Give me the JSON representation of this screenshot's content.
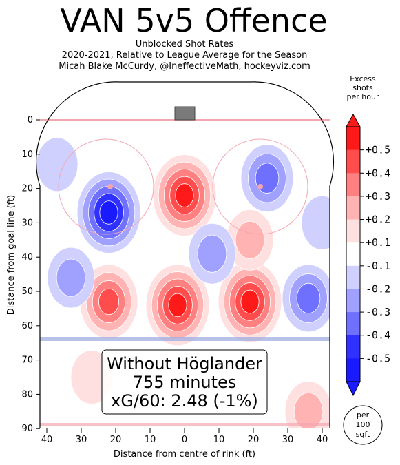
{
  "header": {
    "title": "VAN 5v5 Offence",
    "subtitle_lines": [
      "Unblocked Shot Rates",
      "2020-2021, Relative to League Average for the Season",
      "Micah Blake McCurdy, @IneffectiveMath, hockeyviz.com"
    ]
  },
  "colorbar": {
    "title_lines": [
      "Excess",
      "shots",
      "per hour"
    ],
    "ticks": [
      "+0.5",
      "+0.4",
      "+0.3",
      "+0.2",
      "+0.1",
      "-0.1",
      "-0.2",
      "-0.3",
      "-0.4",
      "-0.5"
    ],
    "colors": [
      "#ff1a1a",
      "#ff4d4d",
      "#ff8080",
      "#ffb3b3",
      "#ffe0e0",
      "#ffffff",
      "#d0d0ff",
      "#a0a0ff",
      "#7070ff",
      "#3030ff",
      "#1a1aff"
    ],
    "unit_lines": [
      "per",
      "100",
      "sqft"
    ]
  },
  "annotation": {
    "lines": [
      "Without Höglander",
      "755 minutes",
      "xG/60: 2.48 (-1%)"
    ]
  },
  "chart_data": {
    "type": "heatmap",
    "xlabel": "Distance from centre of rink (ft)",
    "ylabel": "Distance from goal line (ft)",
    "xlim": [
      -42.5,
      42.5
    ],
    "ylim": [
      90,
      -11
    ],
    "x_ticks": [
      "40",
      "30",
      "20",
      "10",
      "0",
      "10",
      "20",
      "30",
      "40"
    ],
    "y_ticks": [
      "0",
      "10",
      "20",
      "30",
      "40",
      "50",
      "60",
      "70",
      "80",
      "90"
    ],
    "color_scale": [
      -0.5,
      0.5
    ],
    "hotspots": [
      {
        "x": 0,
        "y": 22,
        "value": 0.5
      },
      {
        "x": -2,
        "y": 54,
        "value": 0.5
      },
      {
        "x": 19,
        "y": 53,
        "value": 0.5
      },
      {
        "x": -22,
        "y": 53,
        "value": 0.4
      },
      {
        "x": 19,
        "y": 35,
        "value": 0.2
      },
      {
        "x": 36,
        "y": 85,
        "value": 0.2
      },
      {
        "x": -27,
        "y": 75,
        "value": 0.1
      },
      {
        "x": -22,
        "y": 27,
        "value": -0.5
      },
      {
        "x": 24,
        "y": 17,
        "value": -0.3
      },
      {
        "x": 36,
        "y": 52,
        "value": -0.3
      },
      {
        "x": 8,
        "y": 39,
        "value": -0.2
      },
      {
        "x": -33,
        "y": 46,
        "value": -0.2
      },
      {
        "x": 40,
        "y": 30,
        "value": -0.1
      },
      {
        "x": -37,
        "y": 13,
        "value": -0.1
      }
    ]
  }
}
